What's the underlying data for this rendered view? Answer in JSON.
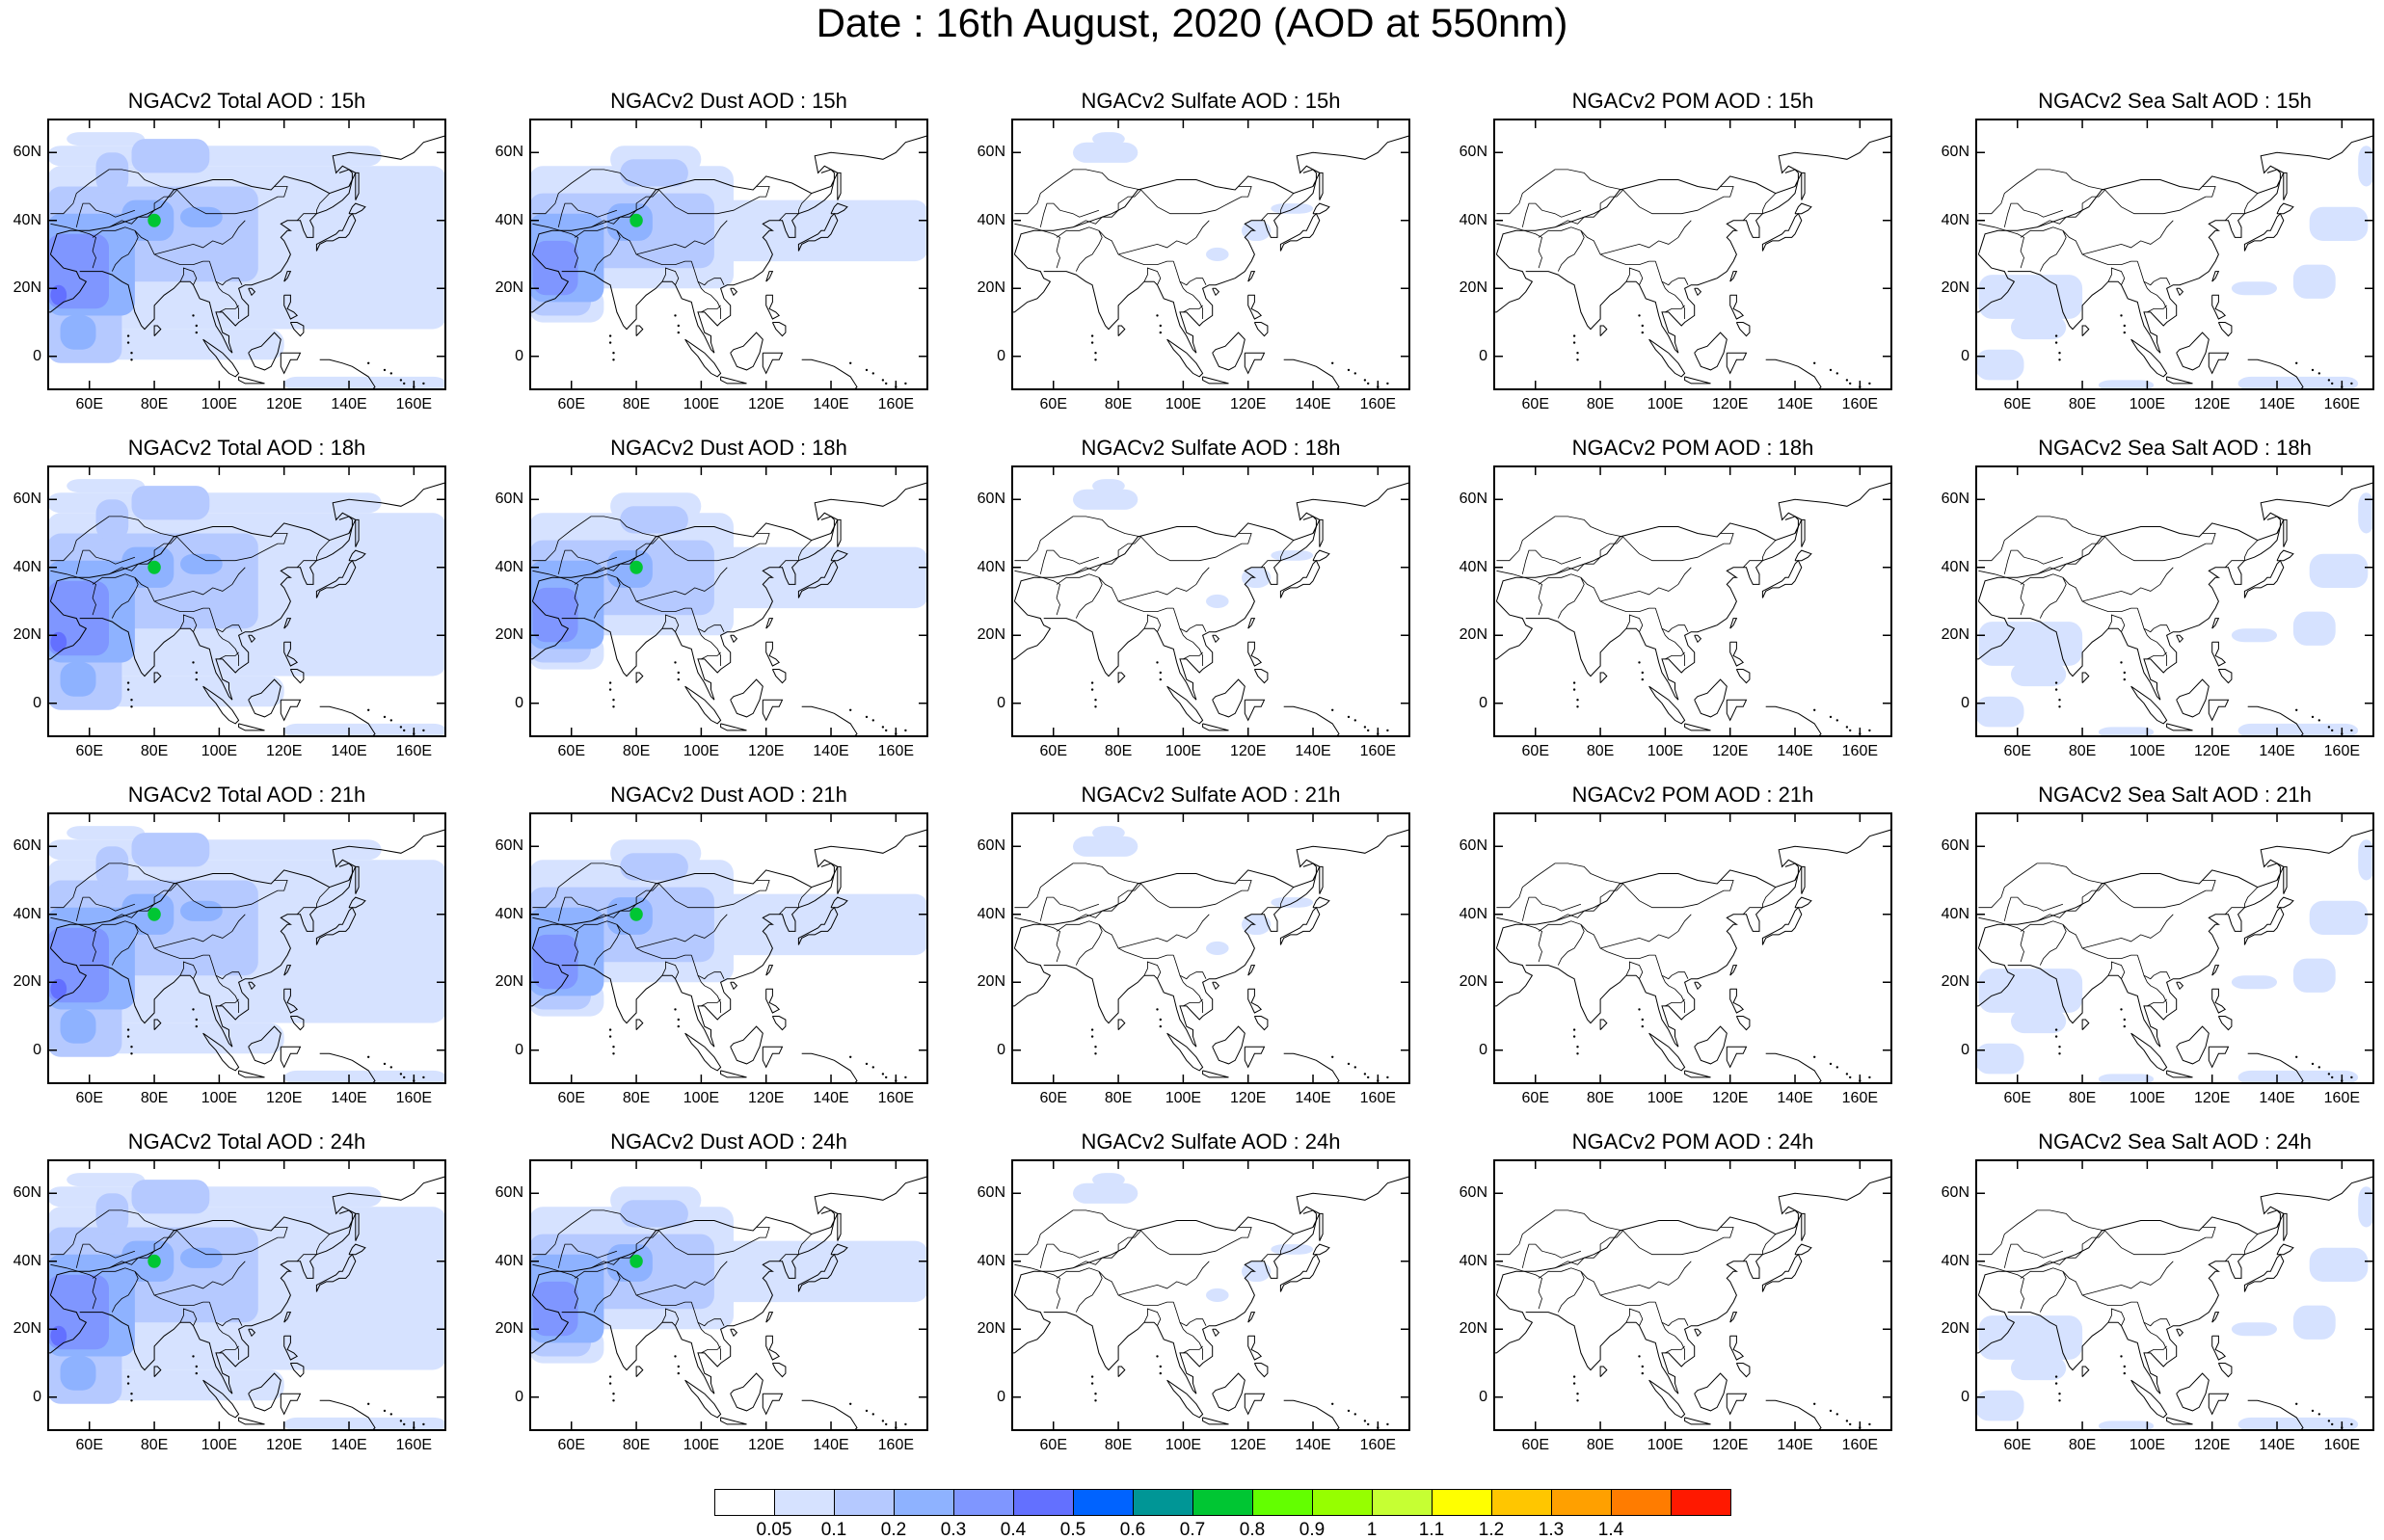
{
  "title": "Date : 16th August, 2020 (AOD at 550nm)",
  "lon_ticks": [
    "60E",
    "80E",
    "100E",
    "120E",
    "140E",
    "160E"
  ],
  "lat_ticks": [
    "60N",
    "40N",
    "20N",
    "0"
  ],
  "panels": [
    [
      "NGACv2 Total AOD : 15h",
      "NGACv2 Dust AOD : 15h",
      "NGACv2 Sulfate AOD : 15h",
      "NGACv2 POM AOD : 15h",
      "NGACv2 Sea Salt AOD : 15h"
    ],
    [
      "NGACv2 Total AOD : 18h",
      "NGACv2 Dust AOD : 18h",
      "NGACv2 Sulfate AOD : 18h",
      "NGACv2 POM AOD : 18h",
      "NGACv2 Sea Salt AOD : 18h"
    ],
    [
      "NGACv2 Total AOD : 21h",
      "NGACv2 Dust AOD : 21h",
      "NGACv2 Sulfate AOD : 21h",
      "NGACv2 POM AOD : 21h",
      "NGACv2 Sea Salt AOD : 21h"
    ],
    [
      "NGACv2 Total AOD : 24h",
      "NGACv2 Dust AOD : 24h",
      "NGACv2 Sulfate AOD : 24h",
      "NGACv2 POM AOD : 24h",
      "NGACv2 Sea Salt  AOD : 24h"
    ]
  ],
  "colorbar": {
    "labels": [
      "0.05",
      "0.1",
      "0.2",
      "0.3",
      "0.4",
      "0.5",
      "0.6",
      "0.7",
      "0.8",
      "0.9",
      "1",
      "1.1",
      "1.2",
      "1.3",
      "1.4"
    ],
    "colors": [
      "#ffffff",
      "#d6e2ff",
      "#b5c9ff",
      "#8eb2ff",
      "#7f96ff",
      "#6370ff",
      "#0063ff",
      "#009696",
      "#00c633",
      "#63ff00",
      "#96ff00",
      "#c6ff33",
      "#ffff00",
      "#ffc600",
      "#ffa000",
      "#ff7c00",
      "#ff1900"
    ]
  }
}
